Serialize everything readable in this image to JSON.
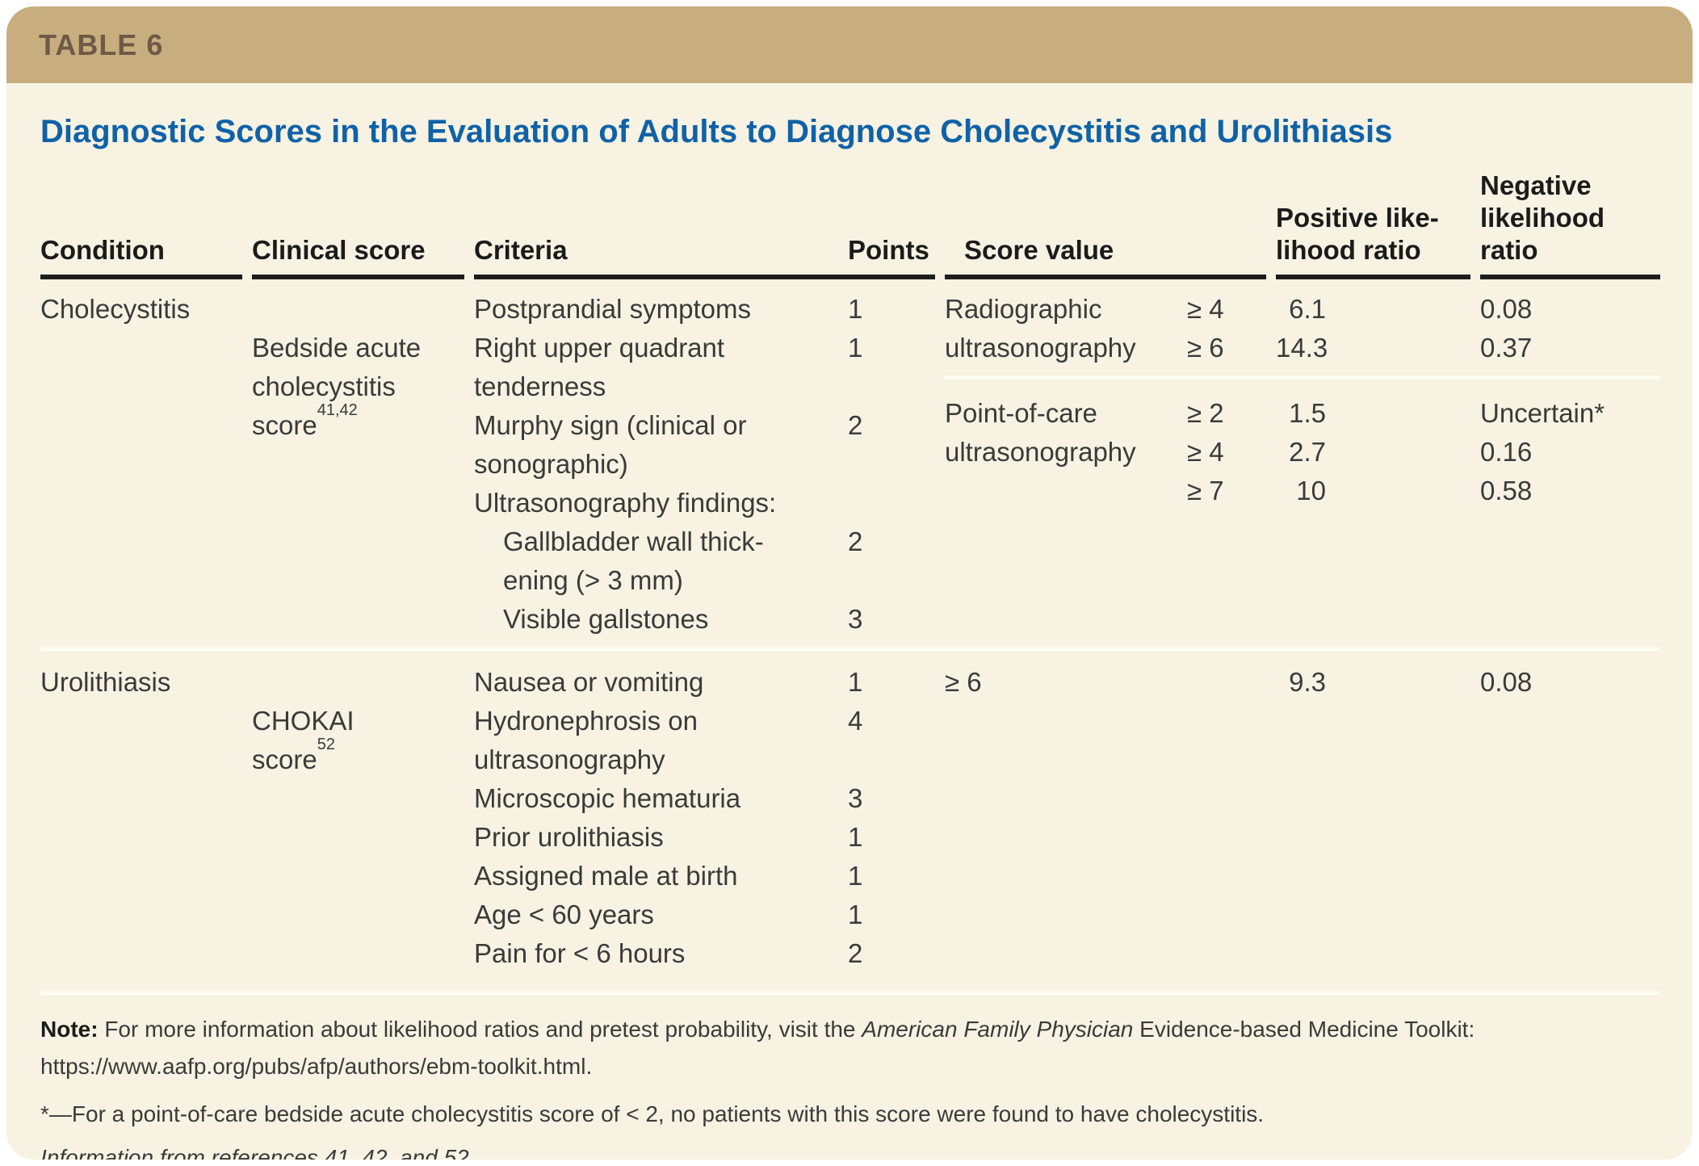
{
  "table_label": "TABLE 6",
  "title": "Diagnostic Scores in the Evaluation of Adults to Diagnose Cholecystitis and Urolithiasis",
  "columns": {
    "condition": "Condition",
    "clinical_score": "Clinical score",
    "criteria": "Criteria",
    "points": "Points",
    "score_value": "Score value",
    "positive_lr": "Positive like-\nlihood ratio",
    "negative_lr": "Negative\nlikelihood ratio"
  },
  "groups": [
    {
      "condition": "Cholecystitis",
      "clinical_score": "Bedside acute\ncholecystitis\nscore",
      "clinical_score_ref": "41,42",
      "criteria": [
        {
          "text": "Postprandial symptoms",
          "points": "1"
        },
        {
          "text": "Right upper quadrant\ntenderness",
          "points": "1"
        },
        {
          "text": "Murphy sign (clinical or\nsonographic)",
          "points": "2"
        },
        {
          "text": "Ultrasonography findings:",
          "points": ""
        },
        {
          "text": "Gallbladder wall thick-\nening (> 3 mm)",
          "points": "2"
        },
        {
          "text": "Visible gallstones",
          "points": "3"
        }
      ],
      "score_blocks": [
        {
          "modality": "Radiographic\nultrasonography",
          "rows": [
            {
              "threshold": "≥ 4",
              "positive": "6.1",
              "negative": "0.08"
            },
            {
              "threshold": "≥ 6",
              "positive": "14.3",
              "negative": "0.37"
            }
          ]
        },
        {
          "modality": "Point-of-care\nultrasonography",
          "rows": [
            {
              "threshold": "≥ 2",
              "positive": "1.5",
              "negative": "Uncertain*"
            },
            {
              "threshold": "≥ 4",
              "positive": "2.7",
              "negative": "0.16"
            },
            {
              "threshold": "≥ 7",
              "positive": "10",
              "negative": "0.58"
            }
          ]
        }
      ]
    },
    {
      "condition": "Urolithiasis",
      "clinical_score": "CHOKAI\nscore",
      "clinical_score_ref": "52",
      "criteria": [
        {
          "text": "Nausea or vomiting",
          "points": "1"
        },
        {
          "text": "Hydronephrosis on\nultrasonography",
          "points": "4"
        },
        {
          "text": "Microscopic hematuria",
          "points": "3"
        },
        {
          "text": "Prior urolithiasis",
          "points": "1"
        },
        {
          "text": "Assigned male at birth",
          "points": "1"
        },
        {
          "text": "Age < 60 years",
          "points": "1"
        },
        {
          "text": "Pain for < 6 hours",
          "points": "2"
        }
      ],
      "score_blocks": [
        {
          "modality": "≥ 6",
          "rows": [
            {
              "threshold": "",
              "positive": "9.3",
              "negative": "0.08"
            }
          ]
        }
      ]
    }
  ],
  "notes": {
    "note_label": "Note:",
    "note_pre": " For more information about likelihood ratios and pretest probability, visit the ",
    "note_italic": "American Family Physician",
    "note_post": " Evidence-based Medicine Toolkit: https://www.aafp.org/pubs/afp/authors/ebm-toolkit.html.",
    "asterisk": "*—For a point-of-care bedside acute cholecystitis score of < 2, no patients with this score were found to have cholecystitis.",
    "source": "Information from references 41, 42, and 52."
  }
}
